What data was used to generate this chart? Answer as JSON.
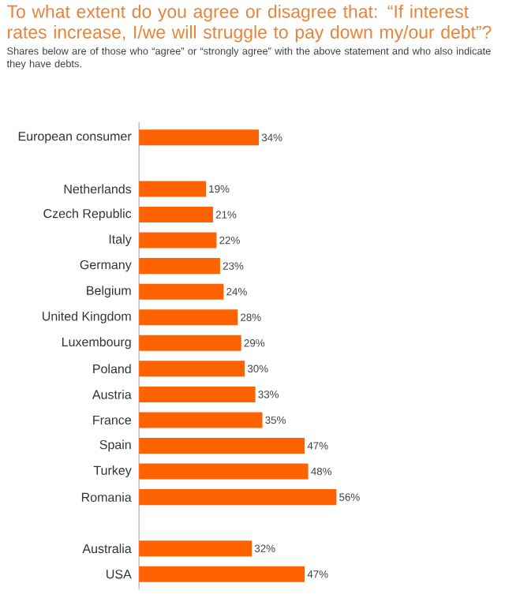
{
  "chart_data": {
    "type": "bar",
    "orientation": "horizontal",
    "title": "To what extent do you agree or disagree that: “If interest rates increase, I/we will struggle to pay down my/our debt”?",
    "subtitle": "Shares below are of those who “agree” or “strongly agree” with the above statement and who also indicate they have debts.",
    "categories": [
      "European consumer",
      null,
      "Netherlands",
      "Czech Republic",
      "Italy",
      "Germany",
      "Belgium",
      "United Kingdom",
      "Luxembourg",
      "Poland",
      "Austria",
      "France",
      "Spain",
      "Turkey",
      "Romania",
      null,
      "Australia",
      "USA"
    ],
    "values": [
      34,
      null,
      19,
      21,
      22,
      23,
      24,
      28,
      29,
      30,
      33,
      35,
      47,
      48,
      56,
      null,
      32,
      47
    ],
    "value_labels": [
      "34%",
      null,
      "19%",
      "21%",
      "22%",
      "23%",
      "24%",
      "28%",
      "29%",
      "30%",
      "33%",
      "35%",
      "47%",
      "48%",
      "56%",
      null,
      "32%",
      "47%"
    ],
    "color": "#ff6200"
  }
}
